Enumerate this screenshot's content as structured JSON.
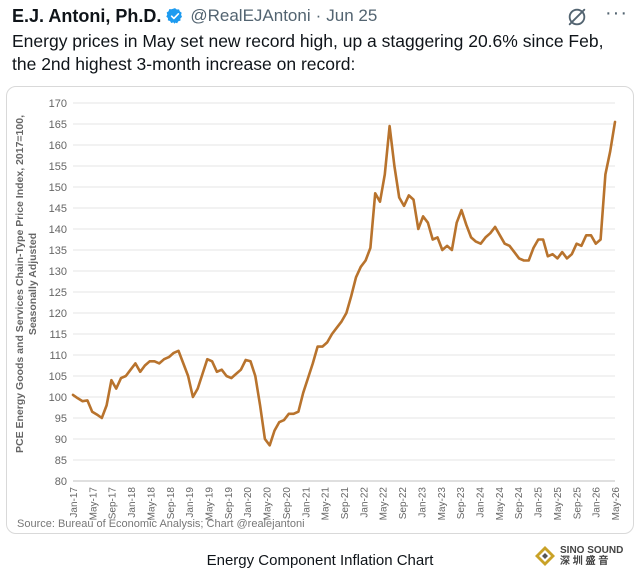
{
  "tweet": {
    "author": "E.J. Antoni, Ph.D.",
    "handle": "@RealEJAntoni",
    "separator": "·",
    "date": "Jun 25",
    "text_line1": "Energy prices in May set new record high, up a staggering 20.6% since Feb,",
    "text_line2": "the 2nd highest 3-month increase on record:"
  },
  "icons": {
    "verified": "verified-badge-icon",
    "grok": "grok-icon",
    "more": "more-options-icon"
  },
  "colors": {
    "line": "#b8732d",
    "verified": "#1d9bf0",
    "grid": "#e6e6e6"
  },
  "caption": "Energy Component Inflation Chart",
  "watermark": {
    "line1": "SINO SOUND",
    "line2": "深 圳 盛 音"
  },
  "chart_data": {
    "type": "line",
    "title": "",
    "xlabel": "",
    "ylabel": "PCE Energy Goods and Services Chain-Type Price Index, 2017=100, Seasonally Adjusted",
    "source": "Source: Bureau of Economic Analysis; Chart @realejantoni",
    "ylim": [
      80,
      170
    ],
    "yticks": [
      80,
      85,
      90,
      95,
      100,
      105,
      110,
      115,
      120,
      125,
      130,
      135,
      140,
      145,
      150,
      155,
      160,
      165,
      170
    ],
    "xticks": [
      "Jan-17",
      "May-17",
      "Sep-17",
      "Jan-18",
      "May-18",
      "Sep-18",
      "Jan-19",
      "May-19",
      "Sep-19",
      "Jan-20",
      "May-20",
      "Sep-20",
      "Jan-21",
      "May-21",
      "Sep-21",
      "Jan-22",
      "May-22",
      "Sep-22",
      "Jan-23",
      "May-23",
      "Sep-23",
      "Jan-24",
      "May-24",
      "Sep-24",
      "Jan-25",
      "May-25",
      "Sep-25",
      "Jan-26",
      "May-26"
    ],
    "grid": true,
    "series": [
      {
        "values": [
          100.5,
          99.7,
          99.0,
          99.2,
          96.5,
          95.8,
          95.0,
          98.0,
          104.0,
          102.0,
          104.5,
          105.0,
          106.5,
          108.0,
          106.0,
          107.5,
          108.5,
          108.5,
          108.0,
          109.0,
          109.5,
          110.5,
          111.0,
          108.0,
          105.0,
          100.0,
          102.0,
          105.5,
          109.0,
          108.5,
          106.0,
          106.5,
          105.0,
          104.5,
          105.5,
          106.5,
          108.8,
          108.5,
          105.0,
          98.0,
          90.0,
          88.5,
          92.0,
          94.0,
          94.5,
          96.0,
          96.0,
          96.5,
          101.0,
          104.5,
          108.0,
          112.0,
          112.0,
          113.0,
          115.0,
          116.5,
          118.0,
          120.0,
          124.0,
          128.5,
          131.0,
          132.5,
          135.5,
          148.5,
          146.5,
          153.0,
          164.5,
          155.0,
          147.5,
          145.5,
          148.0,
          147.0,
          140.0,
          143.0,
          141.5,
          137.5,
          138.0,
          135.0,
          136.0,
          135.0,
          141.5,
          144.5,
          141.0,
          138.0,
          137.0,
          136.5,
          138.0,
          139.0,
          140.5,
          138.5,
          136.5,
          136.0,
          134.5,
          133.0,
          132.5,
          132.5,
          135.5,
          137.5,
          137.5,
          133.5,
          134.0,
          133.0,
          134.5,
          133.0,
          134.0,
          136.5,
          136.0,
          138.5,
          138.5,
          136.5,
          137.5,
          153.0,
          158.5,
          165.5
        ]
      }
    ]
  }
}
